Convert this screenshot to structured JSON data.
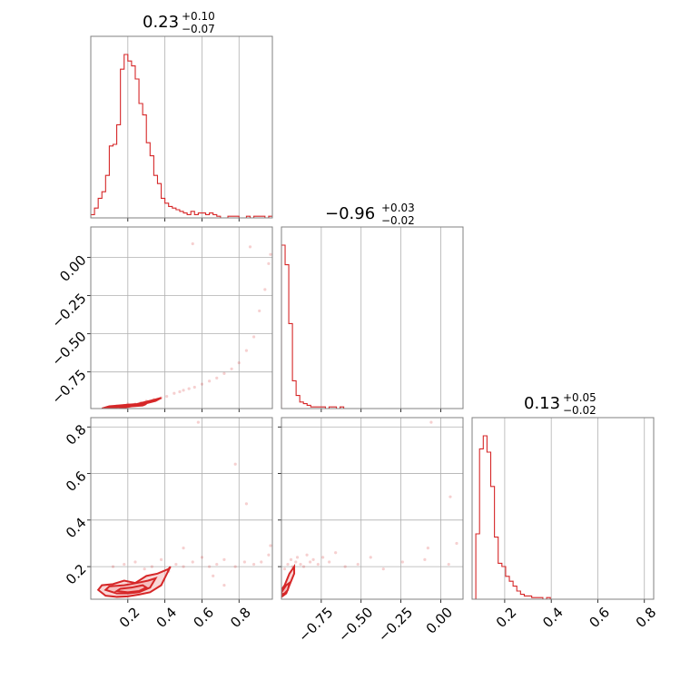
{
  "figure": {
    "type": "corner_plot",
    "accent_color": "#d62728",
    "contour_fill_color": "#f4b6b6",
    "grid": true,
    "parameters": [
      {
        "summary_value": "0.23",
        "summary_plus": "+0.10",
        "summary_minus": "−0.07"
      },
      {
        "summary_value": "−0.96",
        "summary_plus": "+0.03",
        "summary_minus": "−0.02"
      },
      {
        "summary_value": "0.13",
        "summary_plus": "+0.05",
        "summary_minus": "−0.02"
      }
    ]
  },
  "chart_data": [
    {
      "type": "histogram",
      "panel": "p0",
      "title": "0.23^{+0.10}_{-0.07}",
      "xlim": [
        0.0,
        0.98
      ],
      "xticks": [
        0.2,
        0.4,
        0.6,
        0.8
      ],
      "xtick_labels": [],
      "bin_width": 0.02,
      "x_start": 0.0,
      "values": [
        2,
        6,
        12,
        16,
        26,
        44,
        45,
        57,
        91,
        100,
        96,
        93,
        85,
        70,
        63,
        46,
        38,
        26,
        21,
        12,
        9,
        7,
        6,
        5,
        4,
        3,
        2,
        4,
        2,
        3,
        3,
        2,
        3,
        2,
        1,
        0,
        0,
        1,
        1,
        1,
        0,
        0,
        1,
        0,
        1,
        1,
        1,
        0,
        1
      ]
    },
    {
      "type": "scatter",
      "panel": "p0_p1",
      "xlim": [
        0.0,
        0.98
      ],
      "ylim": [
        -0.99,
        0.2
      ],
      "xticks": [
        0.2,
        0.4,
        0.6,
        0.8
      ],
      "yticks": [
        0.0,
        -0.25,
        -0.5,
        -0.75
      ],
      "ytick_labels": [
        "0.00",
        "−0.25",
        "−0.50",
        "−0.75"
      ],
      "x": [
        0.14,
        0.18,
        0.2,
        0.24,
        0.27,
        0.3,
        0.34,
        0.38,
        0.41,
        0.45,
        0.48,
        0.5,
        0.53,
        0.56,
        0.6,
        0.64,
        0.68,
        0.72,
        0.76,
        0.8,
        0.84,
        0.88,
        0.91,
        0.94,
        0.96,
        0.97,
        0.55,
        0.86
      ],
      "y": [
        -0.98,
        -0.97,
        -0.96,
        -0.96,
        -0.95,
        -0.94,
        -0.93,
        -0.92,
        -0.91,
        -0.89,
        -0.88,
        -0.87,
        -0.86,
        -0.85,
        -0.83,
        -0.81,
        -0.79,
        -0.76,
        -0.73,
        -0.69,
        -0.61,
        -0.52,
        -0.35,
        -0.21,
        -0.04,
        0.02,
        0.09,
        0.07
      ],
      "contours": [
        {
          "level": "outer",
          "x": [
            0.06,
            0.1,
            0.15,
            0.2,
            0.25,
            0.3,
            0.35,
            0.38,
            0.35,
            0.3,
            0.25,
            0.2,
            0.15,
            0.1,
            0.06
          ],
          "y": [
            -0.99,
            -0.975,
            -0.97,
            -0.965,
            -0.96,
            -0.945,
            -0.93,
            -0.92,
            -0.94,
            -0.955,
            -0.965,
            -0.975,
            -0.98,
            -0.985,
            -0.99
          ]
        },
        {
          "level": "inner",
          "x": [
            0.15,
            0.2,
            0.25,
            0.3,
            0.28,
            0.22,
            0.17,
            0.15
          ],
          "y": [
            -0.98,
            -0.97,
            -0.965,
            -0.96,
            -0.97,
            -0.975,
            -0.985,
            -0.98
          ]
        }
      ]
    },
    {
      "type": "histogram",
      "panel": "p1",
      "title": "−0.96^{+0.03}_{-0.02}",
      "xlim": [
        -1.0,
        0.14
      ],
      "xticks": [
        -0.75,
        -0.5,
        -0.25,
        0.0
      ],
      "bin_width": 0.023,
      "x_start": -1.0,
      "values": [
        100,
        88,
        52,
        17,
        8,
        4,
        3,
        2,
        1,
        1,
        1,
        1,
        0,
        1,
        1,
        0,
        1,
        0,
        0,
        0,
        0,
        0,
        0,
        0,
        0,
        0,
        0,
        0,
        0,
        0,
        0,
        0,
        0,
        0,
        0,
        0,
        0,
        0,
        0,
        0,
        0,
        0,
        0,
        0,
        0,
        0,
        0,
        0,
        0
      ]
    },
    {
      "type": "scatter",
      "panel": "p0_p2",
      "xlim": [
        0.0,
        0.98
      ],
      "ylim": [
        0.06,
        0.84
      ],
      "xticks": [
        0.2,
        0.4,
        0.6,
        0.8
      ],
      "xtick_labels": [
        "0.2",
        "0.4",
        "0.6",
        "0.8"
      ],
      "yticks": [
        0.2,
        0.4,
        0.6,
        0.8
      ],
      "ytick_labels": [
        "0.2",
        "0.4",
        "0.6",
        "0.8"
      ],
      "x": [
        0.12,
        0.18,
        0.24,
        0.29,
        0.33,
        0.38,
        0.42,
        0.46,
        0.5,
        0.55,
        0.6,
        0.64,
        0.68,
        0.72,
        0.78,
        0.83,
        0.88,
        0.92,
        0.96,
        0.97,
        0.78,
        0.84,
        0.58,
        0.5,
        0.66,
        0.72
      ],
      "y": [
        0.2,
        0.21,
        0.22,
        0.19,
        0.2,
        0.23,
        0.18,
        0.21,
        0.2,
        0.22,
        0.24,
        0.2,
        0.21,
        0.23,
        0.2,
        0.22,
        0.21,
        0.22,
        0.25,
        0.29,
        0.64,
        0.47,
        0.82,
        0.28,
        0.16,
        0.12
      ],
      "contours": [
        {
          "level": "outer",
          "x": [
            0.04,
            0.08,
            0.14,
            0.2,
            0.26,
            0.32,
            0.38,
            0.43,
            0.42,
            0.36,
            0.3,
            0.24,
            0.18,
            0.12,
            0.06,
            0.04
          ],
          "y": [
            0.1,
            0.075,
            0.07,
            0.072,
            0.08,
            0.09,
            0.12,
            0.2,
            0.19,
            0.17,
            0.16,
            0.13,
            0.14,
            0.125,
            0.12,
            0.1
          ]
        },
        {
          "level": "mid",
          "x": [
            0.08,
            0.14,
            0.2,
            0.26,
            0.32,
            0.35,
            0.31,
            0.25,
            0.18,
            0.1,
            0.08
          ],
          "y": [
            0.1,
            0.085,
            0.085,
            0.09,
            0.11,
            0.15,
            0.14,
            0.13,
            0.12,
            0.115,
            0.1
          ]
        },
        {
          "level": "inner",
          "x": [
            0.14,
            0.2,
            0.26,
            0.3,
            0.28,
            0.22,
            0.16,
            0.14
          ],
          "y": [
            0.095,
            0.09,
            0.095,
            0.11,
            0.12,
            0.11,
            0.105,
            0.095
          ]
        }
      ]
    },
    {
      "type": "scatter",
      "panel": "p1_p2",
      "xlim": [
        -1.0,
        0.14
      ],
      "ylim": [
        0.06,
        0.84
      ],
      "xticks": [
        -0.75,
        -0.5,
        -0.25,
        0.0
      ],
      "xtick_labels": [
        "−0.75",
        "−0.50",
        "−0.25",
        "0.00"
      ],
      "yticks": [
        0.2,
        0.4,
        0.6,
        0.8
      ],
      "x": [
        -0.98,
        -0.96,
        -0.94,
        -0.93,
        -0.91,
        -0.9,
        -0.88,
        -0.86,
        -0.84,
        -0.82,
        -0.8,
        -0.77,
        -0.74,
        -0.7,
        -0.66,
        -0.6,
        -0.52,
        -0.44,
        -0.36,
        -0.24,
        -0.1,
        -0.08,
        0.05,
        0.1,
        0.06,
        -0.06
      ],
      "y": [
        0.19,
        0.21,
        0.23,
        0.2,
        0.22,
        0.24,
        0.21,
        0.2,
        0.25,
        0.22,
        0.23,
        0.21,
        0.24,
        0.22,
        0.26,
        0.2,
        0.21,
        0.24,
        0.19,
        0.22,
        0.23,
        0.28,
        0.21,
        0.3,
        0.5,
        0.82
      ],
      "contours": [
        {
          "level": "outer",
          "x": [
            -1.0,
            -0.99,
            -0.97,
            -0.95,
            -0.92,
            -0.92,
            -0.95,
            -0.98,
            -1.0
          ],
          "y": [
            0.07,
            0.075,
            0.085,
            0.12,
            0.17,
            0.2,
            0.17,
            0.12,
            0.1
          ]
        },
        {
          "level": "inner",
          "x": [
            -1.0,
            -0.98,
            -0.96,
            -0.95,
            -0.97,
            -0.99,
            -1.0
          ],
          "y": [
            0.08,
            0.085,
            0.1,
            0.13,
            0.12,
            0.1,
            0.09
          ]
        }
      ]
    },
    {
      "type": "histogram",
      "panel": "p2",
      "title": "0.13^{+0.05}_{-0.02}",
      "xlim": [
        0.06,
        0.84
      ],
      "xticks": [
        0.2,
        0.4,
        0.6,
        0.8
      ],
      "xtick_labels": [
        "0.2",
        "0.4",
        "0.6",
        "0.8"
      ],
      "bin_width": 0.016,
      "x_start": 0.06,
      "values": [
        0,
        40,
        92,
        100,
        90,
        69,
        38,
        22,
        20,
        14,
        11,
        8,
        5,
        3,
        2,
        2,
        1,
        1,
        1,
        0,
        1,
        0,
        0,
        0,
        0,
        0,
        0,
        0,
        0,
        0,
        0,
        0,
        0,
        0,
        0,
        0,
        0,
        0,
        0,
        0,
        0,
        0,
        0,
        0,
        0,
        0,
        0,
        0,
        0
      ]
    }
  ]
}
